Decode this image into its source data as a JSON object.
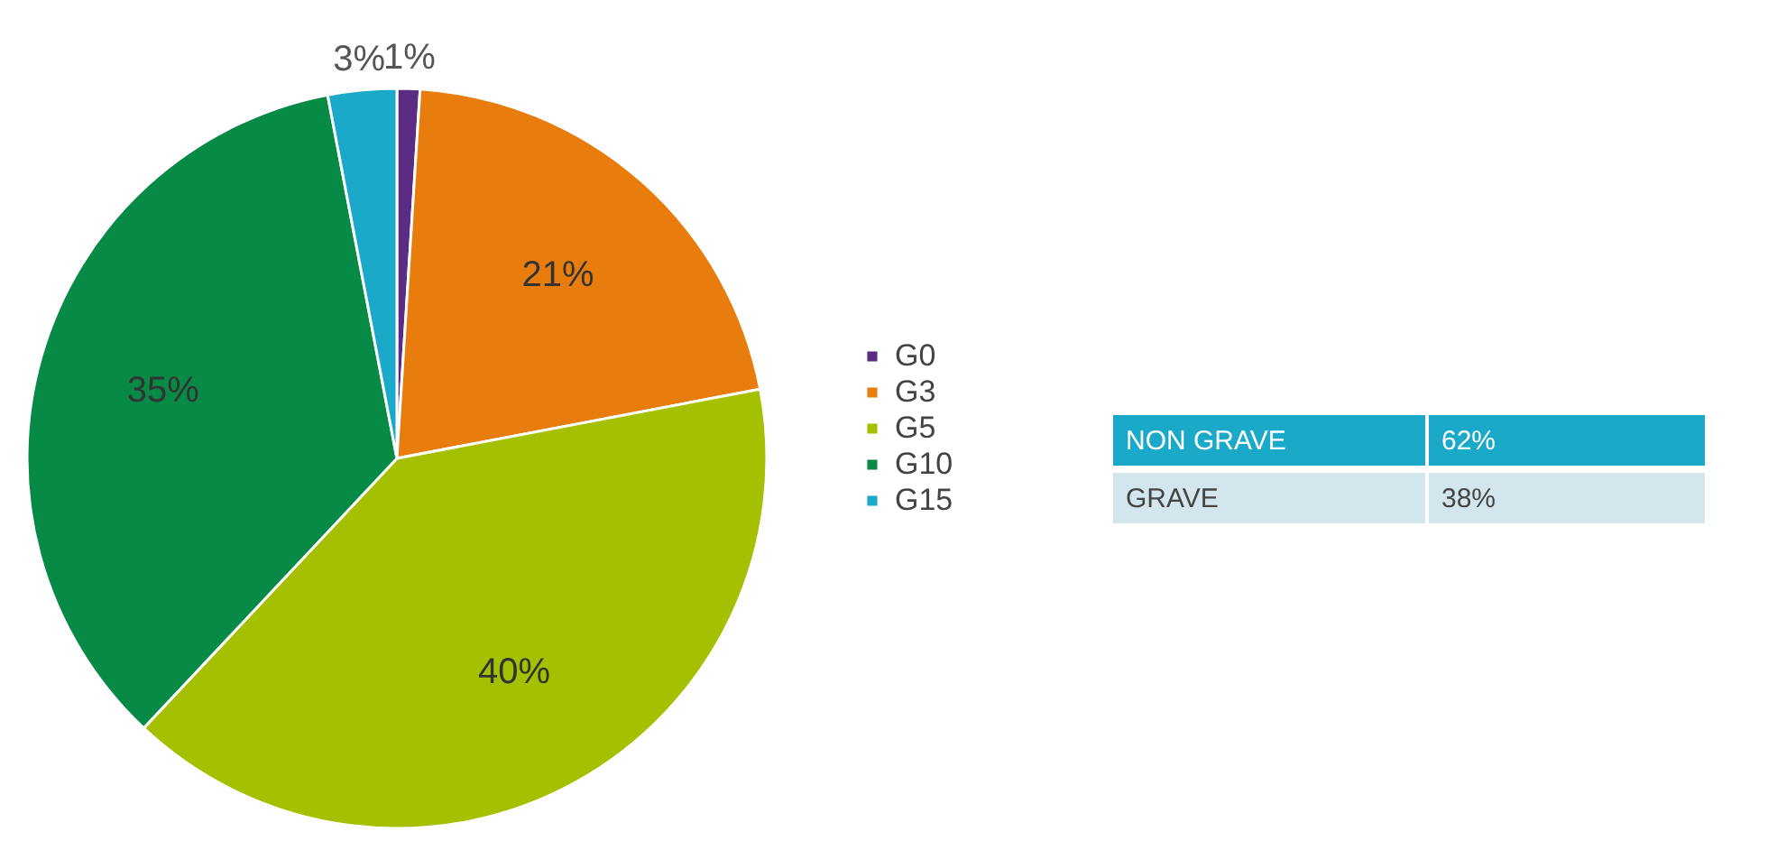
{
  "chart_data": [
    {
      "type": "pie",
      "categories": [
        "G0",
        "G3",
        "G5",
        "G10",
        "G15"
      ],
      "values": [
        1,
        21,
        40,
        35,
        3
      ],
      "colors": [
        "#5b2c83",
        "#e87d0e",
        "#a5c000",
        "#078a45",
        "#1aa9c9"
      ],
      "value_labels": [
        "1%",
        "21%",
        "40%",
        "35%",
        "3%"
      ],
      "legend": "right"
    },
    {
      "type": "other",
      "annotations": [
        "NON GRAVE",
        "62%",
        "GRAVE",
        "38%"
      ]
    }
  ]
}
